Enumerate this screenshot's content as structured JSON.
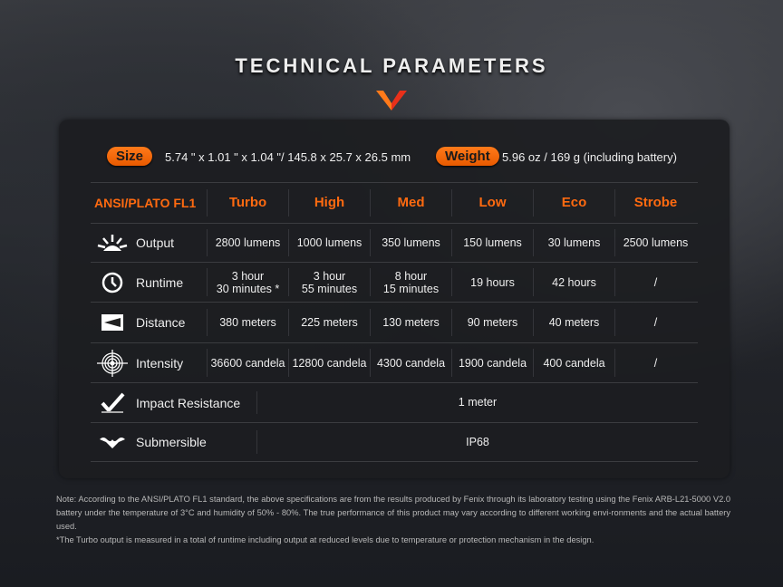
{
  "title": "TECHNICAL PARAMETERS",
  "size": {
    "label": "Size",
    "value": "5.74 \" x 1.01 \" x 1.04 \"/ 145.8 x 25.7 x 26.5 mm"
  },
  "weight": {
    "label": "Weight",
    "value": "5.96 oz / 169 g (including battery)"
  },
  "table": {
    "header": [
      "ANSI/PLATO FL1",
      "Turbo",
      "High",
      "Med",
      "Low",
      "Eco",
      "Strobe"
    ],
    "rows": [
      {
        "label": "Output",
        "icon": "sunburst-icon",
        "values": [
          "2800 lumens",
          "1000 lumens",
          "350 lumens",
          "150 lumens",
          "30 lumens",
          "2500 lumens"
        ]
      },
      {
        "label": "Runtime",
        "icon": "clock-icon",
        "values": [
          [
            "3 hour",
            "30 minutes *"
          ],
          [
            "3 hour",
            "55 minutes"
          ],
          [
            "8 hour",
            "15 minutes"
          ],
          [
            "19 hours"
          ],
          [
            "42 hours"
          ],
          [
            "/"
          ]
        ]
      },
      {
        "label": "Distance",
        "icon": "beam-distance-icon",
        "values": [
          "380 meters",
          "225 meters",
          "130 meters",
          "90 meters",
          "40 meters",
          "/"
        ]
      },
      {
        "label": "Intensity",
        "icon": "target-icon",
        "values": [
          "36600 candela",
          "12800 candela",
          "4300 candela",
          "1900 candela",
          "400 candela",
          "/"
        ]
      },
      {
        "label": "Impact Resistance",
        "icon": "impact-icon",
        "value": "1 meter"
      },
      {
        "label": "Submersible",
        "icon": "water-icon",
        "value": "IP68"
      }
    ]
  },
  "note": [
    "Note: According to the ANSI/PLATO FL1 standard, the above specifications are from the results produced by Fenix through its laboratory testing using the Fenix ARB-L21-5000 V2.0 battery under the temperature of 3°C and humidity of 50% - 80%. The true performance of this product may vary according to different working envi-ronments and the actual battery used.",
    "*The Turbo output is measured in a total of runtime including output at reduced levels due to temperature or protection mechanism in the design."
  ],
  "colors": {
    "accent": "#ff6a10",
    "panel": "#1c1d21"
  }
}
